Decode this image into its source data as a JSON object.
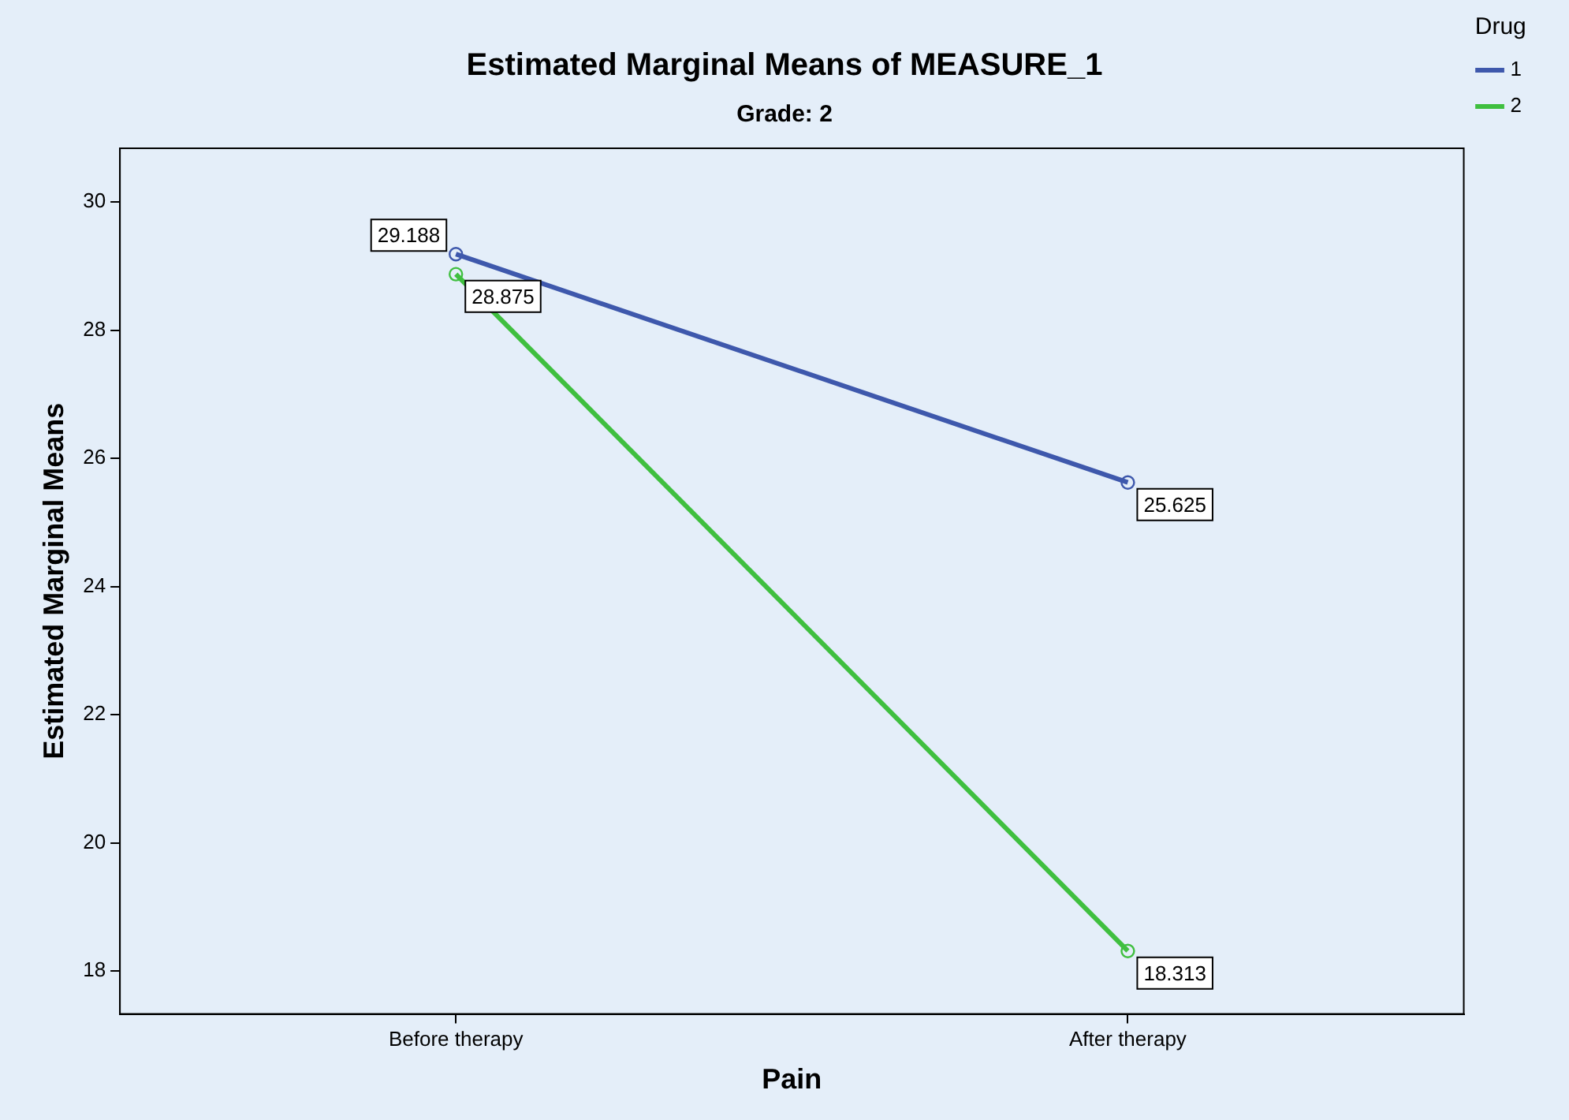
{
  "chart_data": {
    "type": "line",
    "title": "Estimated Marginal Means of MEASURE_1",
    "subtitle": "Grade: 2",
    "xlabel": "Pain",
    "ylabel": "Estimated Marginal Means",
    "legend_title": "Drug",
    "categories": [
      "Before therapy",
      "After therapy"
    ],
    "series": [
      {
        "name": "1",
        "color": "#3e58ac",
        "values": [
          29.188,
          25.625
        ]
      },
      {
        "name": "2",
        "color": "#3fbf3f",
        "values": [
          28.875,
          18.313
        ]
      }
    ],
    "ylim": [
      17.33,
      30.84
    ],
    "yticks": [
      18,
      20,
      22,
      24,
      26,
      28,
      30
    ],
    "grid": false,
    "legend": "top right",
    "marker": "circle",
    "line_style": "solid",
    "data_labels": true
  }
}
